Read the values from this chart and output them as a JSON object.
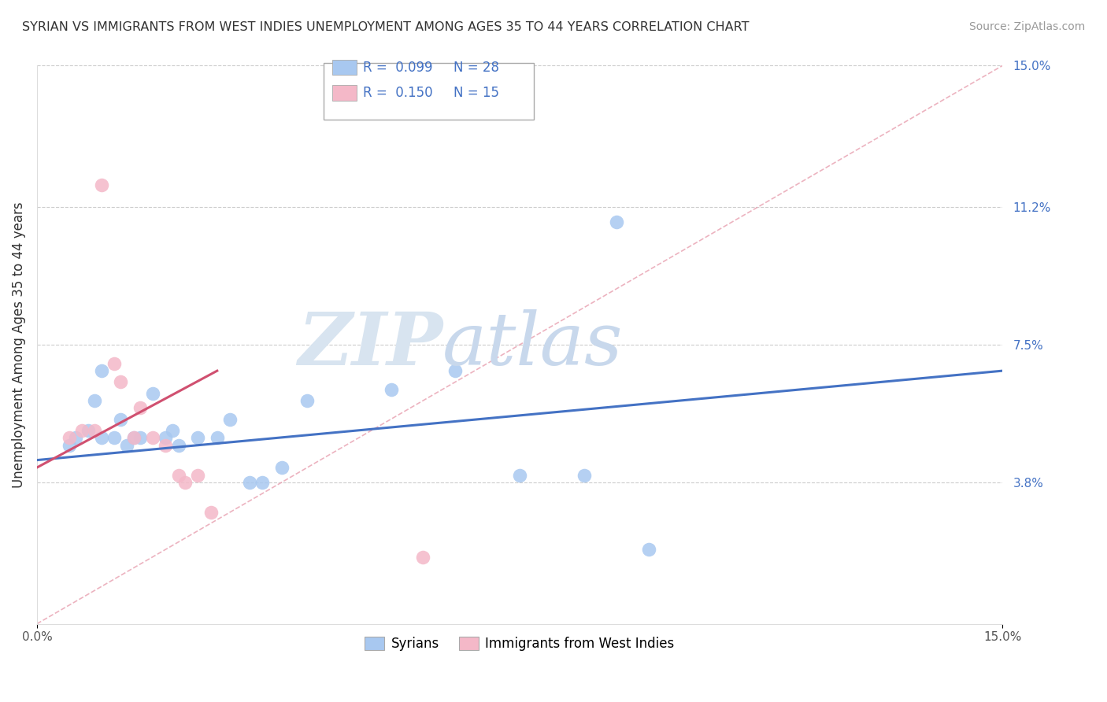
{
  "title": "SYRIAN VS IMMIGRANTS FROM WEST INDIES UNEMPLOYMENT AMONG AGES 35 TO 44 YEARS CORRELATION CHART",
  "source": "Source: ZipAtlas.com",
  "ylabel": "Unemployment Among Ages 35 to 44 years",
  "xlim": [
    0.0,
    0.15
  ],
  "ylim": [
    0.0,
    0.15
  ],
  "right_ytick_labels": [
    "15.0%",
    "11.2%",
    "7.5%",
    "3.8%"
  ],
  "right_ytick_values": [
    0.15,
    0.112,
    0.075,
    0.038
  ],
  "legend_label1": "Syrians",
  "legend_label2": "Immigrants from West Indies",
  "syrians_color": "#a8c8f0",
  "west_indies_color": "#f4b8c8",
  "line1_color": "#4472c4",
  "line2_color": "#d05070",
  "text_color": "#4472c4",
  "dashed_line_color": "#e8a0b0",
  "syrians_x": [
    0.005,
    0.006,
    0.008,
    0.009,
    0.01,
    0.01,
    0.012,
    0.013,
    0.014,
    0.015,
    0.016,
    0.018,
    0.02,
    0.021,
    0.022,
    0.025,
    0.028,
    0.03,
    0.033,
    0.035,
    0.038,
    0.042,
    0.055,
    0.065,
    0.075,
    0.085,
    0.09,
    0.095
  ],
  "syrians_y": [
    0.048,
    0.05,
    0.052,
    0.06,
    0.068,
    0.05,
    0.05,
    0.055,
    0.048,
    0.05,
    0.05,
    0.062,
    0.05,
    0.052,
    0.048,
    0.05,
    0.05,
    0.055,
    0.038,
    0.038,
    0.042,
    0.06,
    0.063,
    0.068,
    0.04,
    0.04,
    0.108,
    0.02
  ],
  "west_indies_x": [
    0.005,
    0.007,
    0.009,
    0.01,
    0.012,
    0.013,
    0.015,
    0.016,
    0.018,
    0.02,
    0.022,
    0.023,
    0.025,
    0.027,
    0.06
  ],
  "west_indies_y": [
    0.05,
    0.052,
    0.052,
    0.118,
    0.07,
    0.065,
    0.05,
    0.058,
    0.05,
    0.048,
    0.04,
    0.038,
    0.04,
    0.03,
    0.018
  ],
  "blue_line_x": [
    0.0,
    0.15
  ],
  "blue_line_y": [
    0.044,
    0.068
  ],
  "pink_line_x": [
    0.0,
    0.028
  ],
  "pink_line_y": [
    0.042,
    0.068
  ],
  "diag_line_x": [
    0.0,
    0.15
  ],
  "diag_line_y": [
    0.0,
    0.15
  ]
}
